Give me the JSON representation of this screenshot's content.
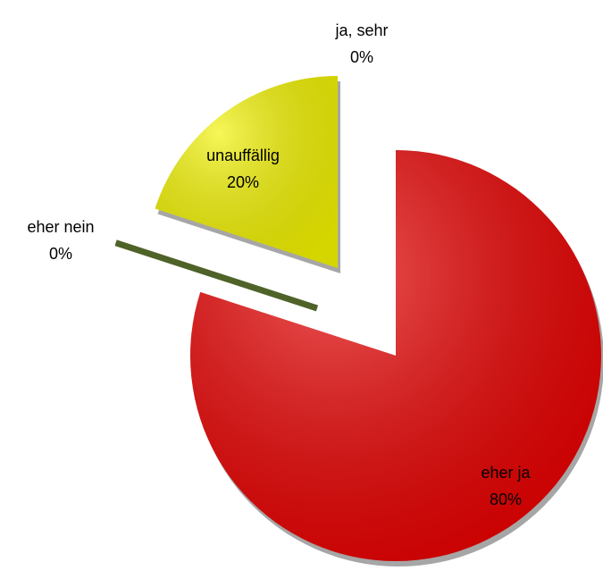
{
  "chart_data": {
    "type": "pie",
    "categories": [
      "ja, sehr",
      "eher ja",
      "eher nein",
      "unauffällig"
    ],
    "values": [
      0,
      80,
      0,
      20
    ],
    "value_labels": [
      "0%",
      "80%",
      "0%",
      "20%"
    ],
    "colors": [
      "#4f81bd",
      "#e80000",
      "#4f6228",
      "#f2f200"
    ]
  }
}
